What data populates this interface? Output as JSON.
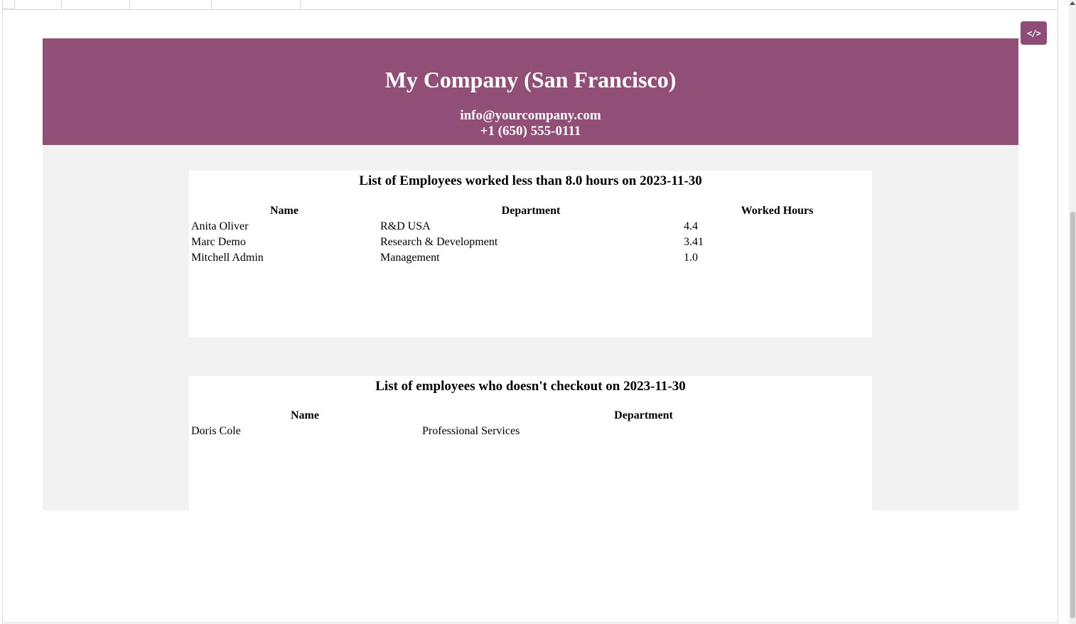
{
  "toolbar": {
    "code_button_label": "</>"
  },
  "company": {
    "name": "My Company (San Francisco)",
    "email": "info@yourcompany.com",
    "phone": "+1 (650) 555-0111"
  },
  "report_low_hours": {
    "title": "List of Employees worked less than 8.0 hours on 2023-11-30",
    "columns": [
      "Name",
      "Department",
      "Worked Hours"
    ],
    "rows": [
      {
        "name": "Anita Oliver",
        "department": "R&D USA",
        "hours": "4.4"
      },
      {
        "name": "Marc Demo",
        "department": "Research & Development",
        "hours": "3.41"
      },
      {
        "name": "Mitchell Admin",
        "department": "Management",
        "hours": "1.0"
      }
    ]
  },
  "report_no_checkout": {
    "title": "List of employees who doesn't checkout on 2023-11-30",
    "columns": [
      "Name",
      "Department"
    ],
    "rows": [
      {
        "name": "Doris Cole",
        "department": "Professional Services"
      }
    ]
  }
}
